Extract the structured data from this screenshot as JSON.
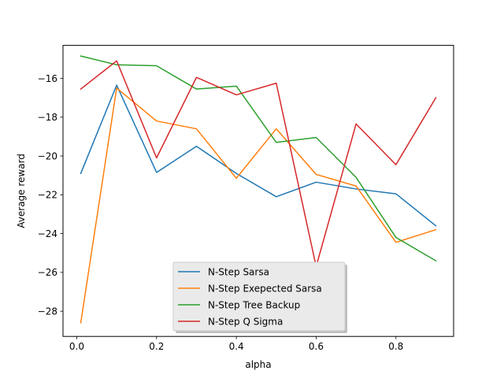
{
  "chart_data": {
    "type": "line",
    "title": "",
    "xlabel": "alpha",
    "ylabel": "Average reward",
    "xlim": [
      -0.0345,
      0.9445
    ],
    "ylim": [
      -29.3,
      -14.3
    ],
    "xticks": [
      0.0,
      0.2,
      0.4,
      0.6,
      0.8
    ],
    "xtick_labels": [
      "0.0",
      "0.2",
      "0.4",
      "0.6",
      "0.8"
    ],
    "yticks": [
      -28,
      -26,
      -24,
      -22,
      -20,
      -18,
      -16
    ],
    "ytick_labels": [
      "−28",
      "−26",
      "−24",
      "−22",
      "−20",
      "−18",
      "−16"
    ],
    "x": [
      0.01,
      0.1,
      0.2,
      0.3,
      0.4,
      0.5,
      0.6,
      0.7,
      0.8,
      0.9
    ],
    "grid": false,
    "legend_position": "lower-center",
    "series": [
      {
        "name": "N-Step Sarsa",
        "color": "#1f77b4",
        "values": [
          -20.9,
          -16.35,
          -20.85,
          -19.5,
          -20.9,
          -22.1,
          -21.35,
          -21.7,
          -21.95,
          -23.6
        ]
      },
      {
        "name": "N-Step Exepected Sarsa",
        "color": "#ff7f0e",
        "values": [
          -28.6,
          -16.5,
          -18.2,
          -18.6,
          -21.15,
          -18.6,
          -20.95,
          -21.55,
          -24.45,
          -23.8
        ]
      },
      {
        "name": "N-Step Tree Backup",
        "color": "#2ca02c",
        "values": [
          -14.85,
          -15.3,
          -15.35,
          -16.55,
          -16.4,
          -19.3,
          -19.05,
          -21.1,
          -24.2,
          -25.4
        ]
      },
      {
        "name": "N-Step Q Sigma",
        "color": "#d62728",
        "values": [
          -16.55,
          -15.1,
          -20.1,
          -15.95,
          -16.85,
          -16.25,
          -25.7,
          -18.35,
          -20.45,
          -17.0
        ]
      }
    ]
  }
}
